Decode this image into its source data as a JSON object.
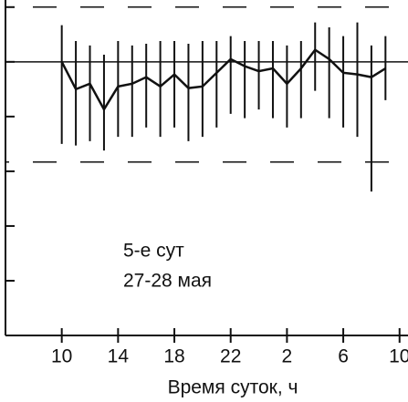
{
  "chart_data": {
    "type": "line",
    "x_label": "Время суток, ч",
    "annotations": [
      "5-е сут",
      "27-28 мая"
    ],
    "x": [
      10,
      11,
      12,
      13,
      14,
      15,
      16,
      17,
      18,
      19,
      20,
      21,
      22,
      23,
      24,
      25,
      26,
      27,
      28,
      29,
      30,
      31,
      32,
      33
    ],
    "series": [
      {
        "color": "#111111",
        "values": [
          5.0,
          4.5,
          4.6,
          4.13,
          4.55,
          4.6,
          4.72,
          4.55,
          4.77,
          4.52,
          4.55,
          4.8,
          5.05,
          4.92,
          4.83,
          4.88,
          4.6,
          4.88,
          5.22,
          5.05,
          4.8,
          4.77,
          4.72,
          4.88
        ],
        "low": [
          3.5,
          3.47,
          3.55,
          3.38,
          3.63,
          3.63,
          3.8,
          3.63,
          3.8,
          3.55,
          3.63,
          3.8,
          4.05,
          3.97,
          4.13,
          3.97,
          3.8,
          3.97,
          4.47,
          3.97,
          3.8,
          3.63,
          2.63,
          4.3
        ],
        "high": [
          5.67,
          5.38,
          5.3,
          5.13,
          5.38,
          5.3,
          5.33,
          5.38,
          5.38,
          5.33,
          5.38,
          5.38,
          5.47,
          5.38,
          5.38,
          5.38,
          5.3,
          5.38,
          5.72,
          5.63,
          5.47,
          5.72,
          5.3,
          5.47
        ]
      }
    ],
    "hlines": [
      {
        "y": 5,
        "style": "solid"
      },
      {
        "y": 6,
        "style": "dashed"
      },
      {
        "y": 3.17,
        "style": "dashed"
      }
    ],
    "xlim": [
      6.0,
      34.6
    ],
    "ylim": [
      0,
      6.13
    ],
    "xticks": [
      10,
      14,
      18,
      22,
      {
        "value": 26,
        "label": "2"
      },
      {
        "value": 30,
        "label": "6"
      },
      {
        "value": 34,
        "label": "10"
      }
    ],
    "yticks": [
      1,
      2,
      3,
      4,
      5,
      6
    ]
  }
}
